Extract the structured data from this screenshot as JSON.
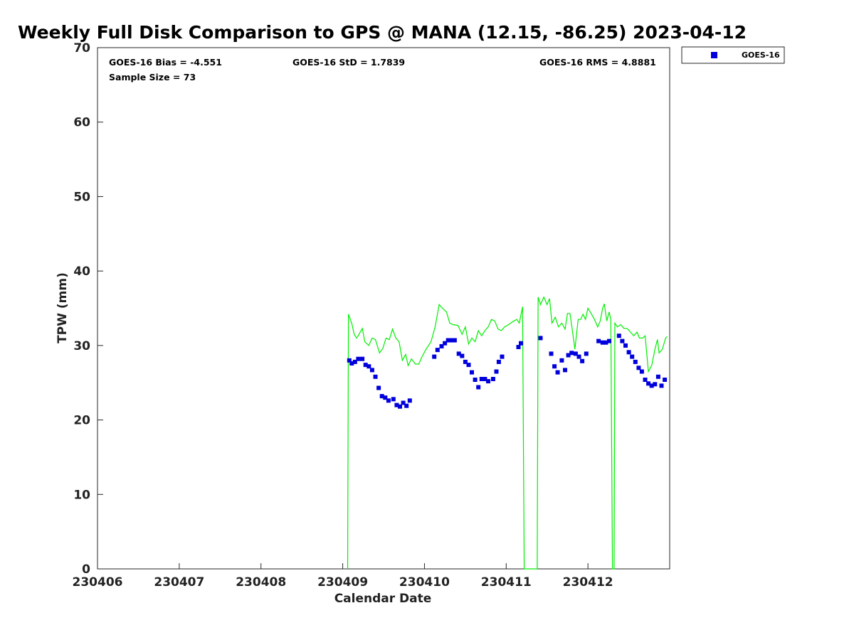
{
  "chart_data": {
    "type": "scatter",
    "title": "Weekly Full Disk Comparison to GPS @ MANA (12.15, -86.25) 2023-04-12",
    "xlabel": "Calendar Date",
    "ylabel": "TPW (mm)",
    "xlim": [
      230406,
      230413
    ],
    "ylim": [
      0,
      70
    ],
    "x_ticks": [
      230406,
      230407,
      230408,
      230409,
      230410,
      230411,
      230412
    ],
    "x_tick_labels": [
      "230406",
      "230407",
      "230408",
      "230409",
      "230410",
      "230411",
      "230412"
    ],
    "y_ticks": [
      0,
      10,
      20,
      30,
      40,
      50,
      60,
      70
    ],
    "y_tick_labels": [
      "0",
      "10",
      "20",
      "30",
      "40",
      "50",
      "60",
      "70"
    ],
    "grid": false,
    "legend_placement": "top-right outside",
    "stats": {
      "bias": "GOES-16 Bias = -4.551",
      "std": "GOES-16 StD = 1.7839",
      "rms": "GOES-16 RMS = 4.8881",
      "sample": "Sample Size = 73"
    },
    "series": [
      {
        "name": "GOES-16",
        "kind": "scatter",
        "color": "#0000dd",
        "marker": "square",
        "points": [
          [
            230409.08,
            28.0
          ],
          [
            230409.11,
            27.6
          ],
          [
            230409.15,
            27.8
          ],
          [
            230409.19,
            28.2
          ],
          [
            230409.24,
            28.2
          ],
          [
            230409.28,
            27.4
          ],
          [
            230409.32,
            27.2
          ],
          [
            230409.36,
            26.7
          ],
          [
            230409.4,
            25.8
          ],
          [
            230409.44,
            24.3
          ],
          [
            230409.48,
            23.2
          ],
          [
            230409.52,
            23.0
          ],
          [
            230409.56,
            22.6
          ],
          [
            230409.62,
            22.8
          ],
          [
            230409.66,
            22.0
          ],
          [
            230409.7,
            21.8
          ],
          [
            230409.74,
            22.3
          ],
          [
            230409.78,
            21.9
          ],
          [
            230409.82,
            22.6
          ],
          [
            230410.12,
            28.5
          ],
          [
            230410.16,
            29.4
          ],
          [
            230410.21,
            29.9
          ],
          [
            230410.25,
            30.3
          ],
          [
            230410.29,
            30.7
          ],
          [
            230410.33,
            30.7
          ],
          [
            230410.37,
            30.7
          ],
          [
            230410.42,
            28.9
          ],
          [
            230410.46,
            28.6
          ],
          [
            230410.5,
            27.8
          ],
          [
            230410.54,
            27.4
          ],
          [
            230410.58,
            26.4
          ],
          [
            230410.62,
            25.4
          ],
          [
            230410.66,
            24.4
          ],
          [
            230410.7,
            25.5
          ],
          [
            230410.74,
            25.5
          ],
          [
            230410.78,
            25.2
          ],
          [
            230410.84,
            25.5
          ],
          [
            230410.88,
            26.5
          ],
          [
            230410.91,
            27.8
          ],
          [
            230410.95,
            28.5
          ],
          [
            230411.15,
            29.8
          ],
          [
            230411.18,
            30.3
          ],
          [
            230411.42,
            31.0
          ],
          [
            230411.55,
            28.9
          ],
          [
            230411.59,
            27.2
          ],
          [
            230411.63,
            26.4
          ],
          [
            230411.68,
            28.0
          ],
          [
            230411.72,
            26.7
          ],
          [
            230411.76,
            28.7
          ],
          [
            230411.8,
            29.0
          ],
          [
            230411.85,
            28.9
          ],
          [
            230411.89,
            28.5
          ],
          [
            230411.93,
            27.9
          ],
          [
            230411.98,
            28.9
          ],
          [
            230412.13,
            30.6
          ],
          [
            230412.18,
            30.4
          ],
          [
            230412.22,
            30.4
          ],
          [
            230412.26,
            30.6
          ],
          [
            230412.38,
            31.3
          ],
          [
            230412.42,
            30.6
          ],
          [
            230412.46,
            30.0
          ],
          [
            230412.5,
            29.1
          ],
          [
            230412.54,
            28.5
          ],
          [
            230412.58,
            27.8
          ],
          [
            230412.62,
            27.0
          ],
          [
            230412.66,
            26.5
          ],
          [
            230412.7,
            25.4
          ],
          [
            230412.74,
            24.9
          ],
          [
            230412.78,
            24.6
          ],
          [
            230412.82,
            24.8
          ],
          [
            230412.86,
            25.8
          ],
          [
            230412.9,
            24.6
          ],
          [
            230412.94,
            25.4
          ]
        ]
      },
      {
        "name": "",
        "kind": "line",
        "color": "#00ee00",
        "points": [
          [
            230409.06,
            0
          ],
          [
            230409.07,
            34.2
          ],
          [
            230409.11,
            33.0
          ],
          [
            230409.14,
            31.5
          ],
          [
            230409.17,
            31.0
          ],
          [
            230409.2,
            31.5
          ],
          [
            230409.24,
            32.3
          ],
          [
            230409.27,
            30.5
          ],
          [
            230409.32,
            30.0
          ],
          [
            230409.36,
            31.0
          ],
          [
            230409.4,
            30.8
          ],
          [
            230409.45,
            29.0
          ],
          [
            230409.49,
            29.6
          ],
          [
            230409.53,
            31.0
          ],
          [
            230409.57,
            30.8
          ],
          [
            230409.61,
            32.2
          ],
          [
            230409.65,
            31.0
          ],
          [
            230409.69,
            30.5
          ],
          [
            230409.73,
            28.0
          ],
          [
            230409.77,
            28.8
          ],
          [
            230409.8,
            27.3
          ],
          [
            230409.84,
            28.2
          ],
          [
            230409.89,
            27.5
          ],
          [
            230409.93,
            27.5
          ],
          [
            230409.97,
            28.5
          ],
          [
            230410.02,
            29.5
          ],
          [
            230410.08,
            30.5
          ],
          [
            230410.13,
            32.5
          ],
          [
            230410.18,
            35.5
          ],
          [
            230410.22,
            35.0
          ],
          [
            230410.27,
            34.5
          ],
          [
            230410.31,
            33.0
          ],
          [
            230410.35,
            32.8
          ],
          [
            230410.41,
            32.7
          ],
          [
            230410.46,
            31.5
          ],
          [
            230410.5,
            32.5
          ],
          [
            230410.54,
            30.2
          ],
          [
            230410.58,
            31.0
          ],
          [
            230410.62,
            30.5
          ],
          [
            230410.66,
            32.0
          ],
          [
            230410.7,
            31.3
          ],
          [
            230410.74,
            32.0
          ],
          [
            230410.78,
            32.5
          ],
          [
            230410.82,
            33.5
          ],
          [
            230410.86,
            33.3
          ],
          [
            230410.9,
            32.2
          ],
          [
            230410.94,
            32.0
          ],
          [
            230410.98,
            32.5
          ],
          [
            230411.03,
            32.8
          ],
          [
            230411.08,
            33.2
          ],
          [
            230411.13,
            33.5
          ],
          [
            230411.16,
            33.0
          ],
          [
            230411.2,
            35.2
          ],
          [
            230411.22,
            0
          ],
          [
            230411.38,
            0
          ],
          [
            230411.39,
            36.5
          ],
          [
            230411.42,
            35.5
          ],
          [
            230411.46,
            36.5
          ],
          [
            230411.5,
            35.5
          ],
          [
            230411.53,
            36.3
          ],
          [
            230411.56,
            33.0
          ],
          [
            230411.6,
            33.8
          ],
          [
            230411.64,
            32.5
          ],
          [
            230411.68,
            33.0
          ],
          [
            230411.72,
            32.2
          ],
          [
            230411.75,
            34.3
          ],
          [
            230411.78,
            34.3
          ],
          [
            230411.81,
            32.0
          ],
          [
            230411.84,
            29.5
          ],
          [
            230411.88,
            33.5
          ],
          [
            230411.91,
            33.5
          ],
          [
            230411.94,
            34.2
          ],
          [
            230411.97,
            33.5
          ],
          [
            230412.0,
            35.0
          ],
          [
            230412.04,
            34.3
          ],
          [
            230412.08,
            33.5
          ],
          [
            230412.12,
            32.5
          ],
          [
            230412.15,
            33.3
          ],
          [
            230412.18,
            35.0
          ],
          [
            230412.2,
            35.6
          ],
          [
            230412.23,
            33.3
          ],
          [
            230412.26,
            34.5
          ],
          [
            230412.28,
            33.5
          ],
          [
            230412.3,
            0
          ],
          [
            230412.32,
            0
          ],
          [
            230412.33,
            33.0
          ],
          [
            230412.36,
            32.5
          ],
          [
            230412.4,
            32.8
          ],
          [
            230412.44,
            32.3
          ],
          [
            230412.48,
            32.3
          ],
          [
            230412.52,
            31.8
          ],
          [
            230412.56,
            31.3
          ],
          [
            230412.6,
            31.8
          ],
          [
            230412.63,
            31.0
          ],
          [
            230412.67,
            31.0
          ],
          [
            230412.7,
            31.3
          ],
          [
            230412.74,
            26.5
          ],
          [
            230412.78,
            27.3
          ],
          [
            230412.82,
            29.5
          ],
          [
            230412.85,
            30.8
          ],
          [
            230412.87,
            29.0
          ],
          [
            230412.91,
            29.5
          ],
          [
            230412.95,
            31.0
          ],
          [
            230412.97,
            31.2
          ]
        ]
      }
    ]
  }
}
